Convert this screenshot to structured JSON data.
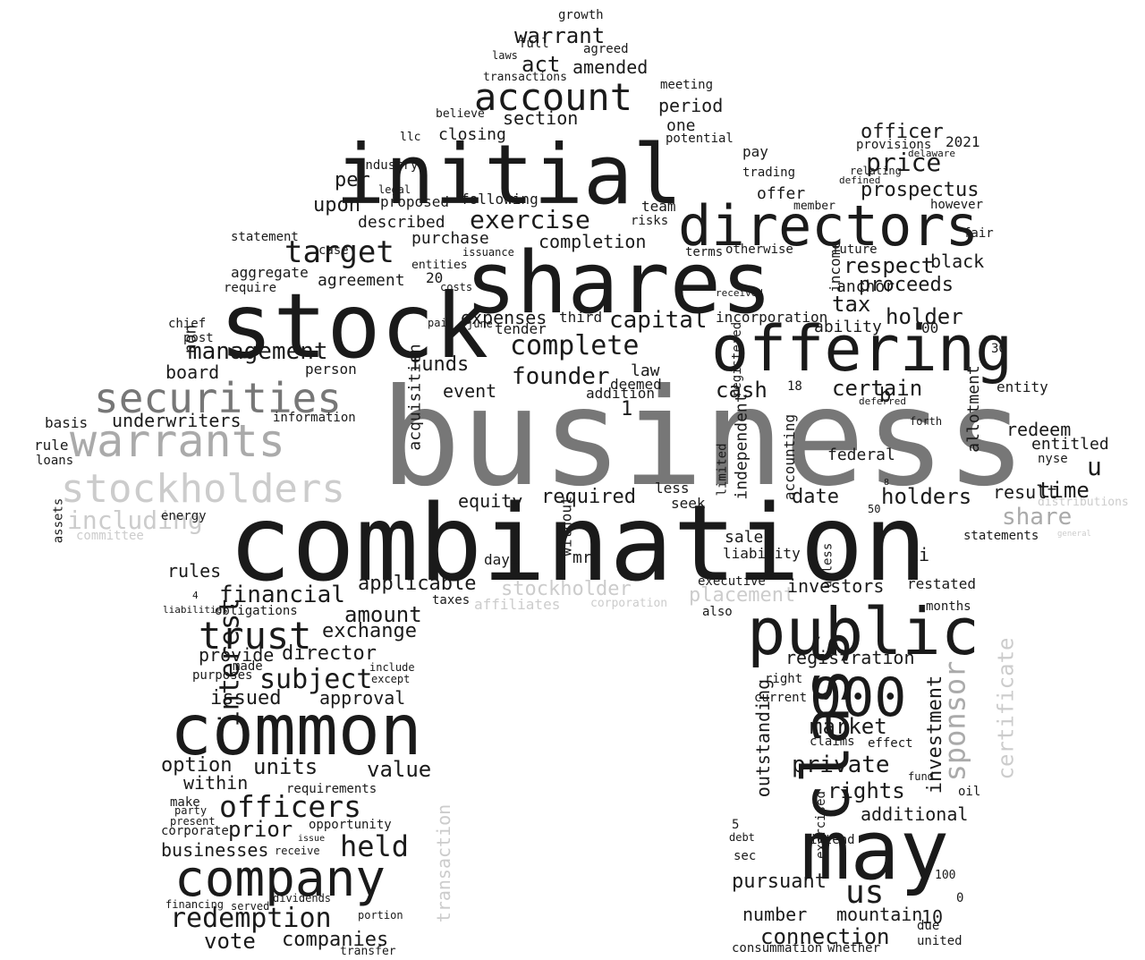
{
  "colors": {
    "background": "#ffffff",
    "dark": "#1a1a1a",
    "mid": "#777777",
    "light": "#aaaaaa",
    "lighter": "#cccccc"
  },
  "words": [
    {
      "t": "business",
      "tone": "mid"
    },
    {
      "t": "combination",
      "tone": "dark"
    },
    {
      "t": "stock",
      "tone": "dark"
    },
    {
      "t": "shares",
      "tone": "dark"
    },
    {
      "t": "initial",
      "tone": "dark"
    },
    {
      "t": "offering",
      "tone": "dark"
    },
    {
      "t": "directors",
      "tone": "dark"
    },
    {
      "t": "public",
      "tone": "dark"
    },
    {
      "t": "may",
      "tone": "dark"
    },
    {
      "t": "common",
      "tone": "dark"
    },
    {
      "t": "company",
      "tone": "dark"
    },
    {
      "t": "class",
      "tone": "dark"
    },
    {
      "t": "000",
      "tone": "dark"
    },
    {
      "t": "warrants",
      "tone": "light"
    },
    {
      "t": "securities",
      "tone": "mid"
    },
    {
      "t": "stockholders",
      "tone": "lighter"
    },
    {
      "t": "including",
      "tone": "lighter"
    },
    {
      "t": "committee",
      "tone": "lighter"
    },
    {
      "t": "account",
      "tone": "dark"
    },
    {
      "t": "trust",
      "tone": "dark"
    },
    {
      "t": "target",
      "tone": "dark"
    },
    {
      "t": "management",
      "tone": "dark"
    },
    {
      "t": "officers",
      "tone": "dark"
    },
    {
      "t": "redemption",
      "tone": "dark"
    },
    {
      "t": "held",
      "tone": "dark"
    },
    {
      "t": "us",
      "tone": "dark"
    },
    {
      "t": "sponsor",
      "tone": "light"
    },
    {
      "t": "certificate",
      "tone": "lighter"
    },
    {
      "t": "stockholder",
      "tone": "lighter"
    },
    {
      "t": "placement",
      "tone": "lighter"
    },
    {
      "t": "affiliates",
      "tone": "lighter"
    },
    {
      "t": "corporation",
      "tone": "lighter"
    },
    {
      "t": "transaction",
      "tone": "lighter"
    },
    {
      "t": "share",
      "tone": "light"
    },
    {
      "t": "distributions",
      "tone": "lighter"
    },
    {
      "t": "general",
      "tone": "lighter"
    },
    {
      "t": "complete",
      "tone": "dark"
    },
    {
      "t": "exercise",
      "tone": "dark"
    },
    {
      "t": "price",
      "tone": "dark"
    },
    {
      "t": "prospectus",
      "tone": "dark"
    },
    {
      "t": "holders",
      "tone": "dark"
    },
    {
      "t": "time",
      "tone": "dark"
    },
    {
      "t": "certain",
      "tone": "dark"
    },
    {
      "t": "cash",
      "tone": "dark"
    },
    {
      "t": "founder",
      "tone": "dark"
    },
    {
      "t": "capital",
      "tone": "dark"
    },
    {
      "t": "subject",
      "tone": "dark"
    },
    {
      "t": "financial",
      "tone": "dark"
    },
    {
      "t": "amount",
      "tone": "dark"
    },
    {
      "t": "interest",
      "tone": "dark"
    },
    {
      "t": "units",
      "tone": "dark"
    },
    {
      "t": "value",
      "tone": "dark"
    },
    {
      "t": "option",
      "tone": "dark"
    },
    {
      "t": "prior",
      "tone": "dark"
    },
    {
      "t": "vote",
      "tone": "dark"
    },
    {
      "t": "companies",
      "tone": "dark"
    },
    {
      "t": "businesses",
      "tone": "dark"
    },
    {
      "t": "within",
      "tone": "dark"
    },
    {
      "t": "rights",
      "tone": "dark"
    },
    {
      "t": "private",
      "tone": "dark"
    },
    {
      "t": "market",
      "tone": "dark"
    },
    {
      "t": "connection",
      "tone": "dark"
    },
    {
      "t": "number",
      "tone": "dark"
    },
    {
      "t": "mountain",
      "tone": "dark"
    },
    {
      "t": "pursuant",
      "tone": "dark"
    },
    {
      "t": "investment",
      "tone": "dark"
    },
    {
      "t": "outstanding",
      "tone": "dark"
    },
    {
      "t": "additional",
      "tone": "dark"
    },
    {
      "t": "registration",
      "tone": "dark"
    },
    {
      "t": "investors",
      "tone": "dark"
    },
    {
      "t": "respect",
      "tone": "dark"
    },
    {
      "t": "proceeds",
      "tone": "dark"
    },
    {
      "t": "holder",
      "tone": "dark"
    },
    {
      "t": "tax",
      "tone": "dark"
    },
    {
      "t": "black",
      "tone": "dark"
    },
    {
      "t": "officer",
      "tone": "dark"
    },
    {
      "t": "redeem",
      "tone": "dark"
    },
    {
      "t": "entitled",
      "tone": "dark"
    },
    {
      "t": "result",
      "tone": "dark"
    },
    {
      "t": "federal",
      "tone": "dark"
    },
    {
      "t": "date",
      "tone": "dark"
    },
    {
      "t": "required",
      "tone": "dark"
    },
    {
      "t": "equity",
      "tone": "dark"
    },
    {
      "t": "event",
      "tone": "dark"
    },
    {
      "t": "funds",
      "tone": "dark"
    },
    {
      "t": "expenses",
      "tone": "dark"
    },
    {
      "t": "acquisition",
      "tone": "dark"
    },
    {
      "t": "board",
      "tone": "dark"
    },
    {
      "t": "underwriters",
      "tone": "dark"
    },
    {
      "t": "information",
      "tone": "dark"
    },
    {
      "t": "agreement",
      "tone": "dark"
    },
    {
      "t": "upon",
      "tone": "dark"
    },
    {
      "t": "per",
      "tone": "dark"
    },
    {
      "t": "purchase",
      "tone": "dark"
    },
    {
      "t": "completion",
      "tone": "dark"
    },
    {
      "t": "described",
      "tone": "dark"
    },
    {
      "t": "following",
      "tone": "dark"
    },
    {
      "t": "proposed",
      "tone": "dark"
    },
    {
      "t": "closing",
      "tone": "dark"
    },
    {
      "t": "section",
      "tone": "dark"
    },
    {
      "t": "period",
      "tone": "dark"
    },
    {
      "t": "one",
      "tone": "dark"
    },
    {
      "t": "act",
      "tone": "dark"
    },
    {
      "t": "amended",
      "tone": "dark"
    },
    {
      "t": "warrant",
      "tone": "dark"
    },
    {
      "t": "meeting",
      "tone": "dark"
    },
    {
      "t": "growth",
      "tone": "dark"
    },
    {
      "t": "agreed",
      "tone": "dark"
    },
    {
      "t": "full",
      "tone": "dark"
    },
    {
      "t": "laws",
      "tone": "dark"
    },
    {
      "t": "transactions",
      "tone": "dark"
    },
    {
      "t": "exchange",
      "tone": "dark"
    },
    {
      "t": "director",
      "tone": "dark"
    },
    {
      "t": "provide",
      "tone": "dark"
    },
    {
      "t": "approval",
      "tone": "dark"
    },
    {
      "t": "issued",
      "tone": "dark"
    },
    {
      "t": "applicable",
      "tone": "dark"
    },
    {
      "t": "rules",
      "tone": "dark"
    },
    {
      "t": "sale",
      "tone": "dark"
    },
    {
      "t": "liability",
      "tone": "dark"
    },
    {
      "t": "executive",
      "tone": "dark"
    },
    {
      "t": "accounting",
      "tone": "dark"
    },
    {
      "t": "independent",
      "tone": "dark"
    },
    {
      "t": "incorporation",
      "tone": "dark"
    },
    {
      "t": "ability",
      "tone": "dark"
    },
    {
      "t": "anchor",
      "tone": "dark"
    },
    {
      "t": "income",
      "tone": "dark"
    },
    {
      "t": "offer",
      "tone": "dark"
    },
    {
      "t": "team",
      "tone": "dark"
    },
    {
      "t": "risks",
      "tone": "dark"
    },
    {
      "t": "terms",
      "tone": "dark"
    },
    {
      "t": "potential",
      "tone": "dark"
    },
    {
      "t": "pay",
      "tone": "dark"
    },
    {
      "t": "trading",
      "tone": "dark"
    },
    {
      "t": "member",
      "tone": "dark"
    },
    {
      "t": "provisions",
      "tone": "dark"
    },
    {
      "t": "2021",
      "tone": "dark"
    },
    {
      "t": "however",
      "tone": "dark"
    },
    {
      "t": "fair",
      "tone": "dark"
    },
    {
      "t": "future",
      "tone": "dark"
    },
    {
      "t": "otherwise",
      "tone": "dark"
    },
    {
      "t": "statements",
      "tone": "dark"
    },
    {
      "t": "allotment",
      "tone": "dark"
    },
    {
      "t": "entity",
      "tone": "dark"
    },
    {
      "t": "nyse",
      "tone": "dark"
    },
    {
      "t": "months",
      "tone": "dark"
    },
    {
      "t": "restated",
      "tone": "dark"
    },
    {
      "t": "unless",
      "tone": "dark"
    },
    {
      "t": "ii",
      "tone": "dark"
    },
    {
      "t": "basis",
      "tone": "dark"
    },
    {
      "t": "rule",
      "tone": "dark"
    },
    {
      "t": "loans",
      "tone": "dark"
    },
    {
      "t": "assets",
      "tone": "dark"
    },
    {
      "t": "aggregate",
      "tone": "dark"
    },
    {
      "t": "require",
      "tone": "dark"
    },
    {
      "t": "statement",
      "tone": "dark"
    },
    {
      "t": "chief",
      "tone": "dark"
    },
    {
      "t": "energy",
      "tone": "dark"
    },
    {
      "t": "make",
      "tone": "dark"
    },
    {
      "t": "corporate",
      "tone": "dark"
    },
    {
      "t": "opportunity",
      "tone": "dark"
    },
    {
      "t": "requirements",
      "tone": "dark"
    },
    {
      "t": "purposes",
      "tone": "dark"
    },
    {
      "t": "made",
      "tone": "dark"
    },
    {
      "t": "obligations",
      "tone": "dark"
    },
    {
      "t": "also",
      "tone": "dark"
    },
    {
      "t": "right",
      "tone": "dark"
    },
    {
      "t": "current",
      "tone": "dark"
    },
    {
      "t": "claims",
      "tone": "dark"
    },
    {
      "t": "effect",
      "tone": "dark"
    },
    {
      "t": "intend",
      "tone": "dark"
    },
    {
      "t": "united",
      "tone": "dark"
    },
    {
      "t": "due",
      "tone": "dark"
    },
    {
      "t": "whether",
      "tone": "dark"
    },
    {
      "t": "consummation",
      "tone": "dark"
    },
    {
      "t": "sec",
      "tone": "dark"
    },
    {
      "t": "debt",
      "tone": "dark"
    },
    {
      "t": "exercised",
      "tone": "dark"
    },
    {
      "t": "10",
      "tone": "dark"
    },
    {
      "t": "transfer",
      "tone": "dark"
    },
    {
      "t": "dividends",
      "tone": "dark"
    },
    {
      "t": "financing",
      "tone": "dark"
    },
    {
      "t": "mr",
      "tone": "dark"
    },
    {
      "t": "without",
      "tone": "dark"
    },
    {
      "t": "days",
      "tone": "dark"
    },
    {
      "t": "seek",
      "tone": "dark"
    },
    {
      "t": "less",
      "tone": "dark"
    },
    {
      "t": "limited",
      "tone": "dark"
    },
    {
      "t": "registered",
      "tone": "dark"
    },
    {
      "t": "law",
      "tone": "dark"
    },
    {
      "t": "deemed",
      "tone": "dark"
    },
    {
      "t": "addition",
      "tone": "dark"
    },
    {
      "t": "third",
      "tone": "dark"
    },
    {
      "t": "tender",
      "tone": "dark"
    },
    {
      "t": "person",
      "tone": "dark"
    },
    {
      "t": "non",
      "tone": "dark"
    },
    {
      "t": "taxes",
      "tone": "dark"
    },
    {
      "t": "oil",
      "tone": "dark"
    },
    {
      "t": "fund",
      "tone": "dark"
    },
    {
      "t": "party",
      "tone": "dark"
    },
    {
      "t": "present",
      "tone": "dark"
    },
    {
      "t": "liabilities",
      "tone": "dark"
    },
    {
      "t": "issue",
      "tone": "dark"
    },
    {
      "t": "receive",
      "tone": "dark"
    },
    {
      "t": "portion",
      "tone": "dark"
    },
    {
      "t": "served",
      "tone": "dark"
    },
    {
      "t": "include",
      "tone": "dark"
    },
    {
      "t": "except",
      "tone": "dark"
    },
    {
      "t": "post",
      "tone": "dark"
    },
    {
      "t": "case",
      "tone": "dark"
    },
    {
      "t": "industry",
      "tone": "dark"
    },
    {
      "t": "legal",
      "tone": "dark"
    },
    {
      "t": "llc",
      "tone": "dark"
    },
    {
      "t": "believe",
      "tone": "dark"
    },
    {
      "t": "entities",
      "tone": "dark"
    },
    {
      "t": "issuance",
      "tone": "dark"
    },
    {
      "t": "costs",
      "tone": "dark"
    },
    {
      "t": "paid",
      "tone": "dark"
    },
    {
      "t": "june",
      "tone": "dark"
    },
    {
      "t": "deferred",
      "tone": "dark"
    },
    {
      "t": "forth",
      "tone": "dark"
    },
    {
      "t": "delaware",
      "tone": "dark"
    },
    {
      "t": "relating",
      "tone": "dark"
    },
    {
      "t": "defined",
      "tone": "dark"
    },
    {
      "t": "received",
      "tone": "dark"
    },
    {
      "t": "u",
      "tone": "dark"
    },
    {
      "t": "b",
      "tone": "dark"
    },
    {
      "t": "20",
      "tone": "dark"
    },
    {
      "t": "00",
      "tone": "dark"
    },
    {
      "t": "18",
      "tone": "dark"
    },
    {
      "t": "30",
      "tone": "dark"
    },
    {
      "t": "50",
      "tone": "dark"
    },
    {
      "t": "100",
      "tone": "dark"
    },
    {
      "t": "5",
      "tone": "dark"
    },
    {
      "t": "0",
      "tone": "dark"
    },
    {
      "t": "1",
      "tone": "dark"
    },
    {
      "t": "4",
      "tone": "dark"
    },
    {
      "t": "8",
      "tone": "dark"
    }
  ]
}
